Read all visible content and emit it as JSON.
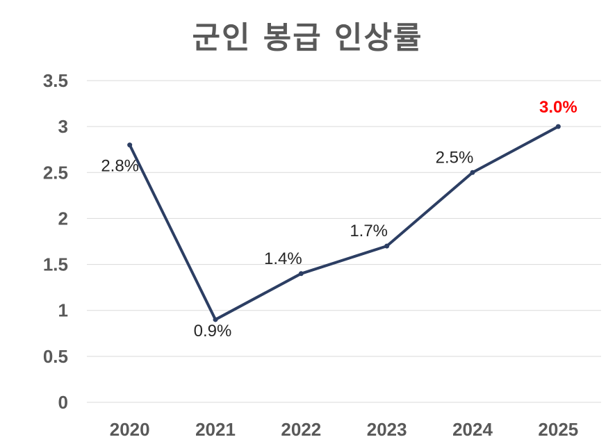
{
  "chart_data": {
    "type": "line",
    "title": "군인 봉급 인상률",
    "categories": [
      "2020",
      "2021",
      "2022",
      "2023",
      "2024",
      "2025"
    ],
    "values": [
      2.8,
      0.9,
      1.4,
      1.7,
      2.5,
      3.0
    ],
    "data_labels": [
      "2.8%",
      "0.9%",
      "1.4%",
      "1.7%",
      "2.5%",
      "3.0%"
    ],
    "highlight_index": 5,
    "y_ticks": [
      "0",
      "0.5",
      "1",
      "1.5",
      "2",
      "2.5",
      "3",
      "3.5"
    ],
    "ylim": [
      0,
      3.5
    ],
    "grid": true,
    "legend": "none",
    "colors": {
      "line": "#2c3e63",
      "highlight_label": "#ff0000",
      "grid": "#d9d9d9",
      "axis_text": "#595959"
    }
  }
}
